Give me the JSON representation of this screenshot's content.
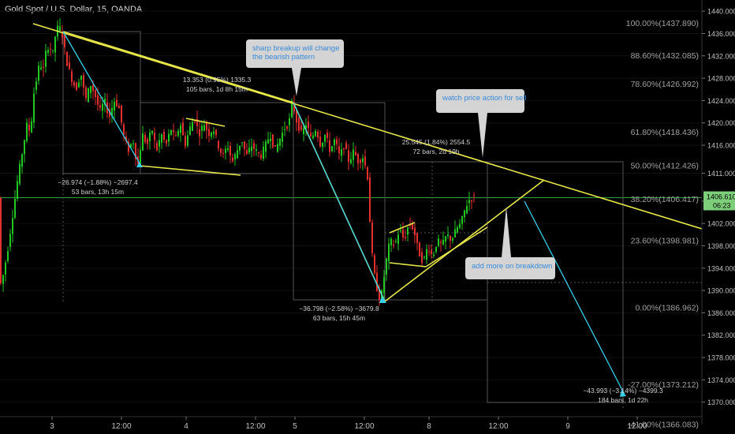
{
  "header": {
    "title": "Gold Spot / U.S. Dollar, 15, OANDA"
  },
  "colors": {
    "background": "#000000",
    "up_candle": "#22c822",
    "down_candle": "#e53030",
    "trendline": "#e8e84a",
    "projection": "#35d0e8",
    "last_price_line": "#2f9e3f",
    "fib_line": "#6a6a6a",
    "price_label_bg": "#7ecf7a",
    "annotation_bg": "#d4d4d4",
    "annotation_text": "#3a8ad8"
  },
  "annotations": [
    {
      "id": "breakup",
      "text": [
        "sharp breakup will change",
        "the bearish pattern"
      ]
    },
    {
      "id": "watch",
      "text": [
        "watch price action for sell"
      ]
    },
    {
      "id": "add-more",
      "text": [
        "add more on breakdown"
      ]
    }
  ],
  "measurements": [
    {
      "id": "m1",
      "line1": "−26.974 (−1.88%) −2697.4",
      "line2": "53 bars, 13h 15m"
    },
    {
      "id": "m2",
      "line1": "13.353 (0.95%) 1335.3",
      "line2": "105 bars, 1d 8h 15m"
    },
    {
      "id": "m3",
      "line1": "−36.798 (−2.58%) −3679.8",
      "line2": "63 bars, 15h 45m"
    },
    {
      "id": "m4",
      "line1": "25.545 (1.84%) 2554.5",
      "line2": "72 bars, 2d 19h"
    },
    {
      "id": "m5",
      "line1": "−43.993 (−3.14%) −4399.3",
      "line2": "184 bars, 1d 22h"
    }
  ],
  "chart_data": {
    "type": "candlestick",
    "title": "Gold Spot / U.S. Dollar, 15, OANDA",
    "y_axis": {
      "ticks": [
        1370,
        1374,
        1378,
        1382,
        1386,
        1390,
        1394,
        1398,
        1402,
        1406,
        1411,
        1416,
        1420,
        1424,
        1428,
        1432,
        1436,
        1440
      ],
      "tick_labels": [
        "1370.000",
        "1374.000",
        "1378.000",
        "1382.000",
        "1386.000",
        "1390.000",
        "1394.000",
        "1398.000",
        "1402.000",
        "1406.000",
        "1411.000",
        "1416.000",
        "1420.000",
        "1424.000",
        "1428.000",
        "1432.000",
        "1436.000",
        "1440.000"
      ],
      "range": [
        1366,
        1442
      ]
    },
    "x_axis": {
      "tick_labels": [
        "3",
        "12:00",
        "4",
        "12:00",
        "5",
        "12:00",
        "8",
        "12:00",
        "9",
        "12:00"
      ]
    },
    "last_price": {
      "value": 1406.61,
      "label": "1406.610",
      "countdown": "06:23"
    },
    "fibonacci": {
      "levels": [
        {
          "ratio": "100.00%",
          "price": 1437.89,
          "label": "100.00%(1437.890)"
        },
        {
          "ratio": "88.60%",
          "price": 1432.085,
          "label": "88.60%(1432.085)"
        },
        {
          "ratio": "78.60%",
          "price": 1426.992,
          "label": "78.60%(1426.992)"
        },
        {
          "ratio": "61.80%",
          "price": 1418.436,
          "label": "61.80%(1418.436)"
        },
        {
          "ratio": "50.00%",
          "price": 1412.426,
          "label": "50.00%(1412.426)"
        },
        {
          "ratio": "38.20%",
          "price": 1406.417,
          "label": "38.20%(1406.417)"
        },
        {
          "ratio": "23.60%",
          "price": 1398.981,
          "label": "23.60%(1398.981)"
        },
        {
          "ratio": "0.00%",
          "price": 1386.962,
          "label": "0.00%(1386.962)"
        },
        {
          "ratio": "-27.00%",
          "price": 1373.212,
          "label": "-27.00%(1373.212)"
        },
        {
          "ratio": "-41.00%",
          "price": 1366.083,
          "label": "-41.00%(1366.083)"
        }
      ]
    },
    "price_path": [
      [
        0,
        1390
      ],
      [
        6,
        1393
      ],
      [
        12,
        1398
      ],
      [
        18,
        1404
      ],
      [
        24,
        1410
      ],
      [
        30,
        1415
      ],
      [
        36,
        1420
      ],
      [
        40,
        1418
      ],
      [
        44,
        1425
      ],
      [
        48,
        1428
      ],
      [
        52,
        1431
      ],
      [
        56,
        1429
      ],
      [
        60,
        1433
      ],
      [
        64,
        1434
      ],
      [
        68,
        1432
      ],
      [
        72,
        1436
      ],
      [
        76,
        1437.5
      ],
      [
        80,
        1436
      ],
      [
        86,
        1431
      ],
      [
        92,
        1428
      ],
      [
        98,
        1426
      ],
      [
        104,
        1429
      ],
      [
        110,
        1424
      ],
      [
        116,
        1427
      ],
      [
        122,
        1425
      ],
      [
        128,
        1422
      ],
      [
        134,
        1424
      ],
      [
        140,
        1421
      ],
      [
        146,
        1424
      ],
      [
        152,
        1423
      ],
      [
        158,
        1418
      ],
      [
        164,
        1415
      ],
      [
        170,
        1417
      ],
      [
        176,
        1412
      ],
      [
        182,
        1418
      ],
      [
        188,
        1416
      ],
      [
        194,
        1419
      ],
      [
        200,
        1415
      ],
      [
        206,
        1418
      ],
      [
        212,
        1416
      ],
      [
        218,
        1419
      ],
      [
        224,
        1417
      ],
      [
        230,
        1420
      ],
      [
        236,
        1416
      ],
      [
        242,
        1419
      ],
      [
        248,
        1421
      ],
      [
        254,
        1418
      ],
      [
        260,
        1420
      ],
      [
        266,
        1418
      ],
      [
        272,
        1419
      ],
      [
        278,
        1416
      ],
      [
        284,
        1414
      ],
      [
        290,
        1416
      ],
      [
        296,
        1413
      ],
      [
        302,
        1415
      ],
      [
        308,
        1417
      ],
      [
        314,
        1414
      ],
      [
        320,
        1416
      ],
      [
        326,
        1415
      ],
      [
        332,
        1414
      ],
      [
        338,
        1416
      ],
      [
        344,
        1418
      ],
      [
        350,
        1415
      ],
      [
        356,
        1417
      ],
      [
        362,
        1419
      ],
      [
        368,
        1420
      ],
      [
        372,
        1424
      ],
      [
        378,
        1420
      ],
      [
        384,
        1418
      ],
      [
        390,
        1420
      ],
      [
        396,
        1417
      ],
      [
        402,
        1419
      ],
      [
        408,
        1416
      ],
      [
        414,
        1418
      ],
      [
        420,
        1415
      ],
      [
        426,
        1417
      ],
      [
        432,
        1414
      ],
      [
        438,
        1416
      ],
      [
        444,
        1413
      ],
      [
        450,
        1415
      ],
      [
        456,
        1413
      ],
      [
        462,
        1414
      ],
      [
        468,
        1410
      ],
      [
        472,
        1398
      ],
      [
        476,
        1393
      ],
      [
        480,
        1390
      ],
      [
        484,
        1388
      ],
      [
        488,
        1392
      ],
      [
        492,
        1396
      ],
      [
        496,
        1399
      ],
      [
        502,
        1398
      ],
      [
        508,
        1401
      ],
      [
        514,
        1399
      ],
      [
        520,
        1402
      ],
      [
        526,
        1401
      ],
      [
        532,
        1397
      ],
      [
        538,
        1395
      ],
      [
        544,
        1398
      ],
      [
        550,
        1396
      ],
      [
        556,
        1399
      ],
      [
        562,
        1398
      ],
      [
        568,
        1400
      ],
      [
        574,
        1399
      ],
      [
        580,
        1401
      ],
      [
        586,
        1402
      ],
      [
        592,
        1405
      ],
      [
        598,
        1406.6
      ],
      [
        604,
        1406.6
      ]
    ]
  }
}
